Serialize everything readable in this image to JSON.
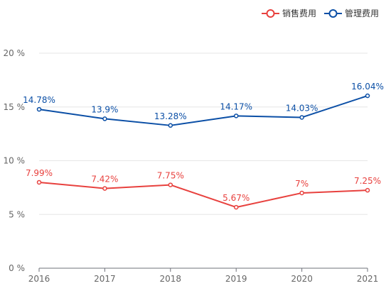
{
  "chart_data": {
    "type": "line",
    "categories": [
      "2016",
      "2017",
      "2018",
      "2019",
      "2020",
      "2021"
    ],
    "y_ticks": [
      "0 %",
      "5 %",
      "10 %",
      "15 %",
      "20 %"
    ],
    "ylim": [
      0,
      20
    ],
    "grid": true,
    "legend_position": "top-right",
    "series": [
      {
        "name": "销售费用",
        "color": "#e8413e",
        "values": [
          7.99,
          7.42,
          7.75,
          5.67,
          7.0,
          7.25
        ],
        "labels": [
          "7.99%",
          "7.42%",
          "7.75%",
          "5.67%",
          "7%",
          "7.25%"
        ]
      },
      {
        "name": "管理费用",
        "color": "#0b4fa6",
        "values": [
          14.78,
          13.9,
          13.28,
          14.17,
          14.03,
          16.04
        ],
        "labels": [
          "14.78%",
          "13.9%",
          "13.28%",
          "14.17%",
          "14.03%",
          "16.04%"
        ]
      }
    ]
  }
}
